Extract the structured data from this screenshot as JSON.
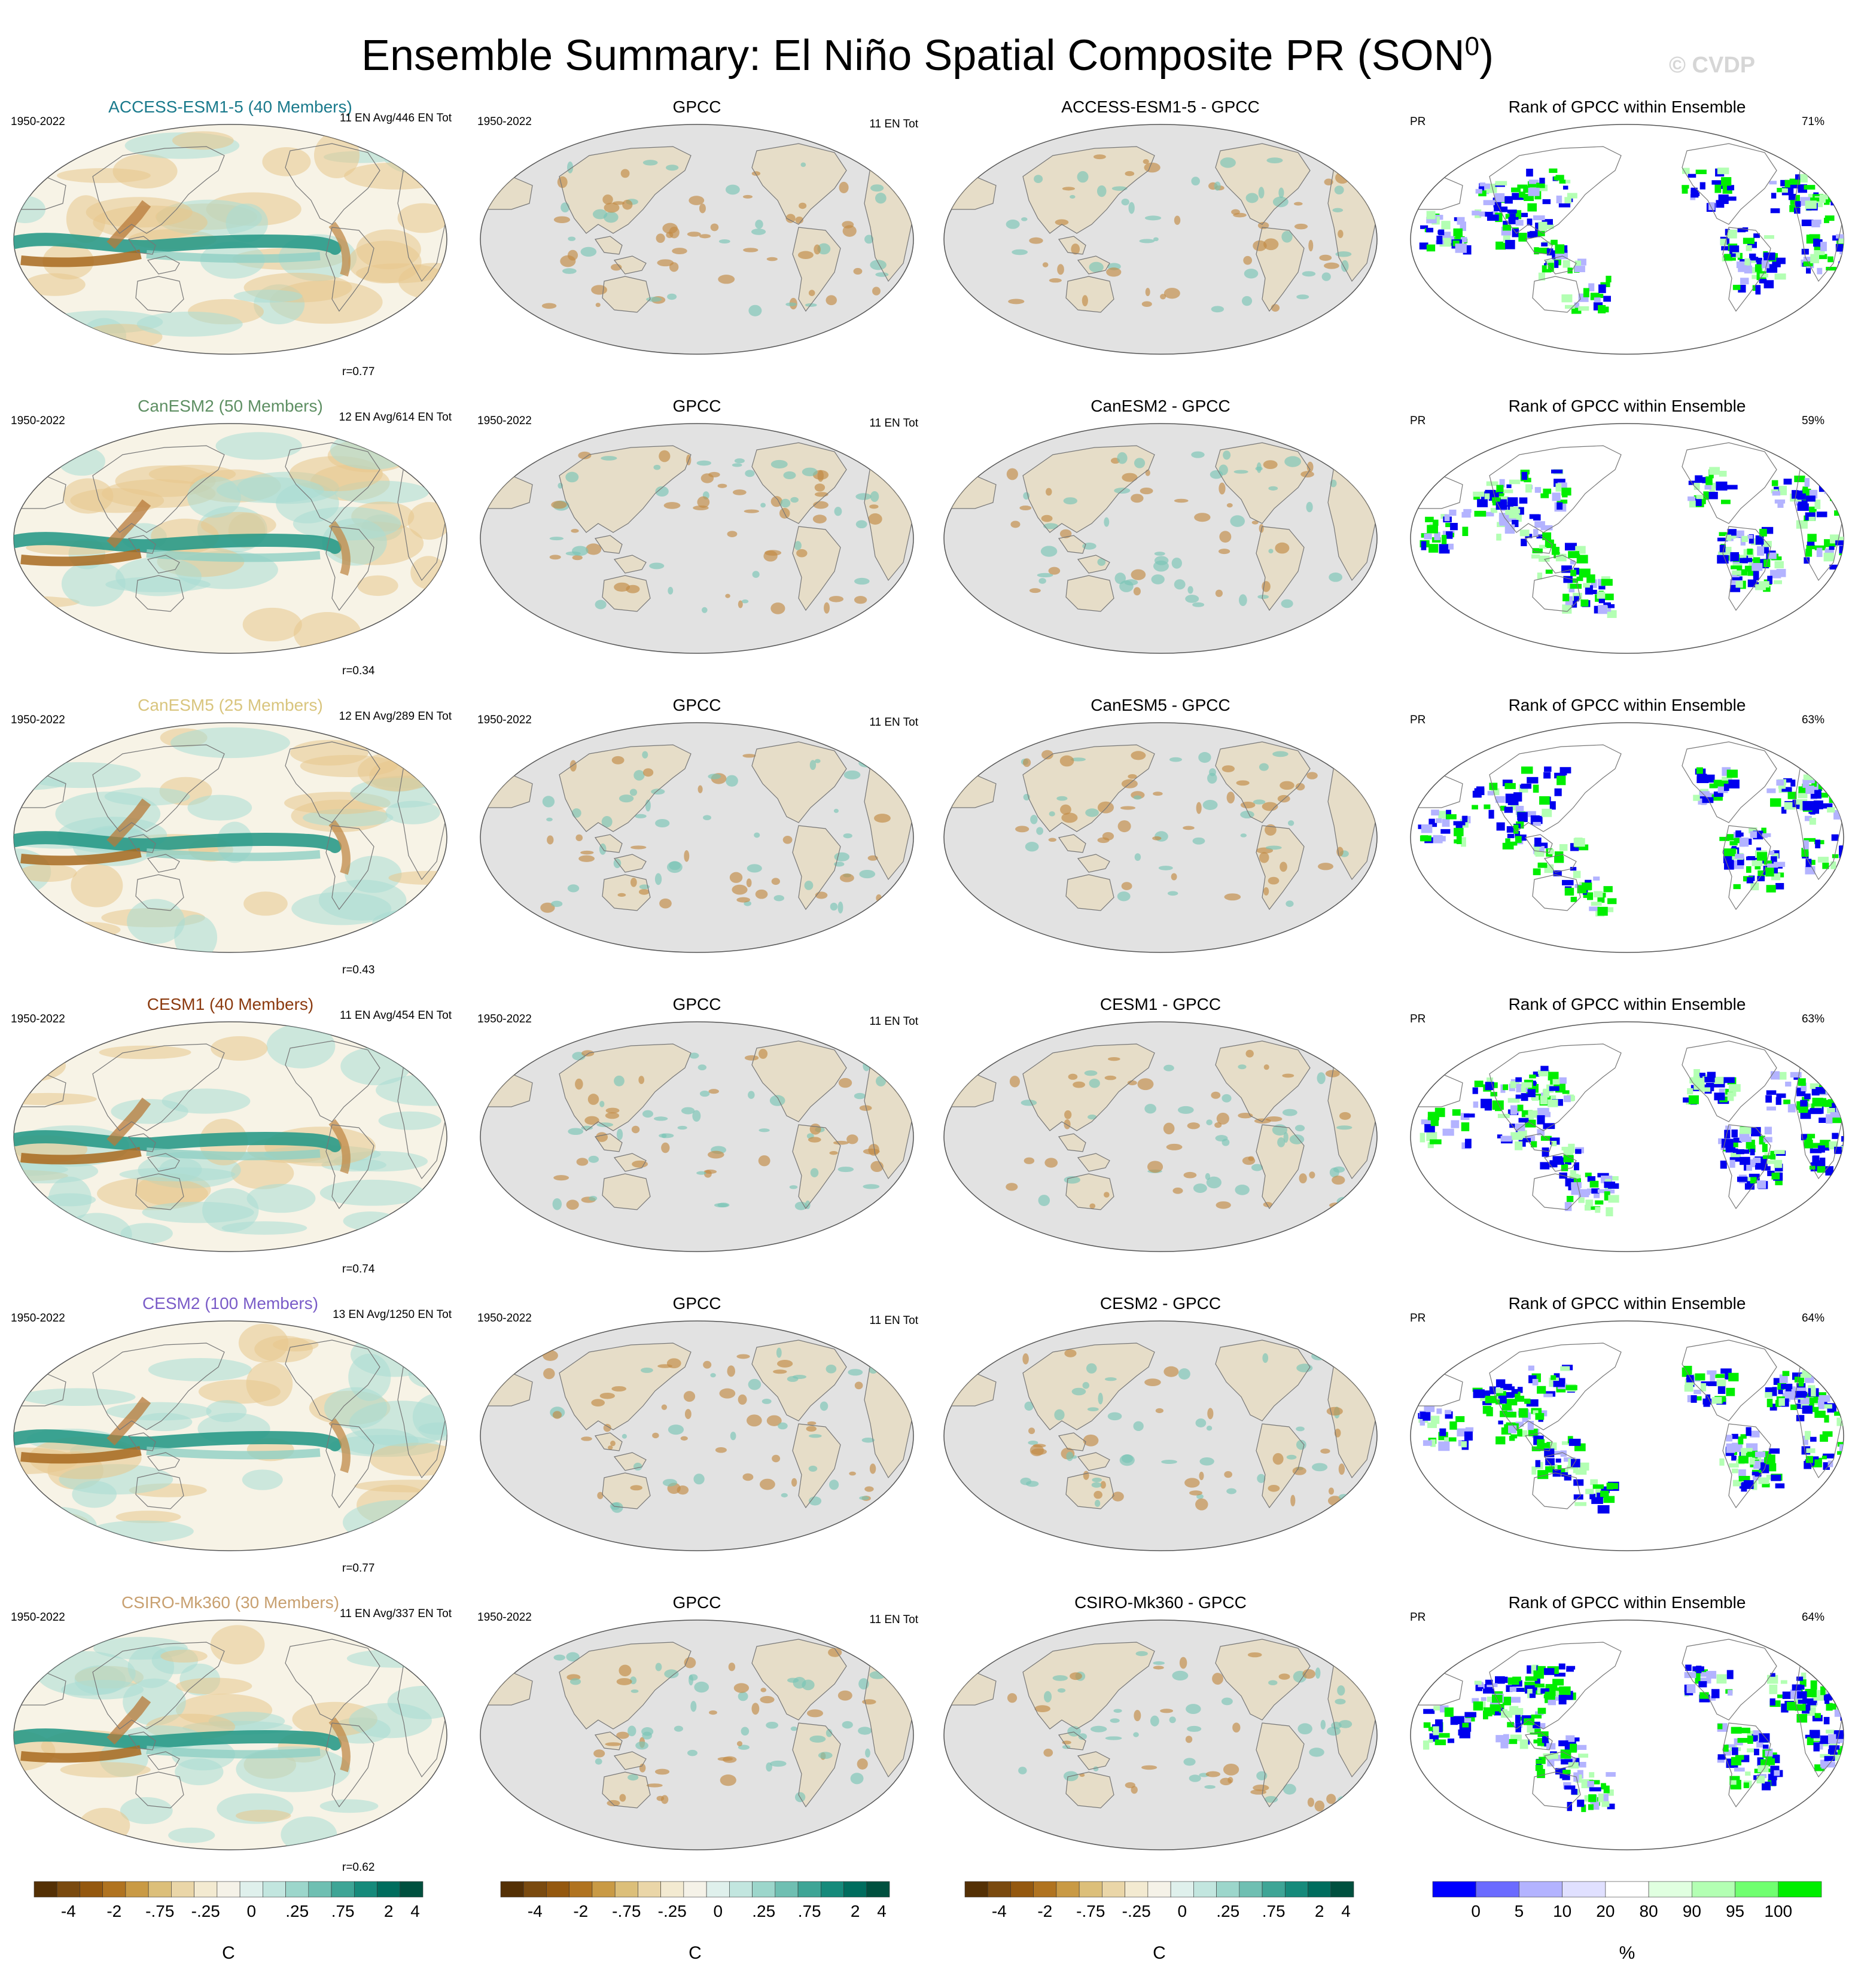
{
  "title": "Ensemble Summary: El Niño Spatial Composite PR (SON",
  "title_sup": "0",
  "title_close": ")",
  "watermark": "© CVDP",
  "rows": [
    {
      "model": "ACCESS-ESM1-5 (40 Members)",
      "model_color": "#1a7a8c",
      "period": "1950-2022",
      "counts": "11 EN Avg/446 EN Tot",
      "r": "r=0.77",
      "obs_title": "GPCC",
      "obs_period": "1950-2022",
      "obs_counts": "11 EN Tot",
      "diff_title": "ACCESS-ESM1-5 - GPCC",
      "rank_title": "Rank of GPCC within Ensemble",
      "rank_var": "PR",
      "rank_pct": "71%"
    },
    {
      "model": "CanESM2 (50 Members)",
      "model_color": "#5e8f63",
      "period": "1950-2022",
      "counts": "12 EN Avg/614 EN Tot",
      "r": "r=0.34",
      "obs_title": "GPCC",
      "obs_period": "1950-2022",
      "obs_counts": "11 EN Tot",
      "diff_title": "CanESM2 - GPCC",
      "rank_title": "Rank of GPCC within Ensemble",
      "rank_var": "PR",
      "rank_pct": "59%"
    },
    {
      "model": "CanESM5 (25 Members)",
      "model_color": "#d9c57e",
      "period": "1950-2022",
      "counts": "12 EN Avg/289 EN Tot",
      "r": "r=0.43",
      "obs_title": "GPCC",
      "obs_period": "1950-2022",
      "obs_counts": "11 EN Tot",
      "diff_title": "CanESM5 - GPCC",
      "rank_title": "Rank of GPCC within Ensemble",
      "rank_var": "PR",
      "rank_pct": "63%"
    },
    {
      "model": "CESM1 (40 Members)",
      "model_color": "#8b3a0f",
      "period": "1950-2022",
      "counts": "11 EN Avg/454 EN Tot",
      "r": "r=0.74",
      "obs_title": "GPCC",
      "obs_period": "1950-2022",
      "obs_counts": "11 EN Tot",
      "diff_title": "CESM1 - GPCC",
      "rank_title": "Rank of GPCC within Ensemble",
      "rank_var": "PR",
      "rank_pct": "63%"
    },
    {
      "model": "CESM2 (100 Members)",
      "model_color": "#7a5cc8",
      "period": "1950-2022",
      "counts": "13 EN Avg/1250 EN Tot",
      "r": "r=0.77",
      "obs_title": "GPCC",
      "obs_period": "1950-2022",
      "obs_counts": "11 EN Tot",
      "diff_title": "CESM2 - GPCC",
      "rank_title": "Rank of GPCC within Ensemble",
      "rank_var": "PR",
      "rank_pct": "64%"
    },
    {
      "model": "CSIRO-Mk360 (30 Members)",
      "model_color": "#c8a070",
      "period": "1950-2022",
      "counts": "11 EN Avg/337 EN Tot",
      "r": "r=0.62",
      "obs_title": "GPCC",
      "obs_period": "1950-2022",
      "obs_counts": "11 EN Tot",
      "diff_title": "CSIRO-Mk360 - GPCC",
      "rank_title": "Rank of GPCC within Ensemble",
      "rank_var": "PR",
      "rank_pct": "64%"
    }
  ],
  "colorbars": {
    "anomaly": {
      "ticks": [
        "-4",
        "-2",
        "-.75",
        "-.25",
        "0",
        ".25",
        ".75",
        "2",
        "4"
      ],
      "unit": "C",
      "colors": [
        "#543005",
        "#7a4a0f",
        "#94580f",
        "#b07320",
        "#c99a45",
        "#dcbf7a",
        "#ead6a8",
        "#f3ead1",
        "#f5f2e8",
        "#dff0ec",
        "#c2e6df",
        "#9cd6cb",
        "#6fbfb2",
        "#3ea596",
        "#168a7b",
        "#006d5e",
        "#00503f"
      ]
    },
    "rank": {
      "ticks": [
        "0",
        "5",
        "10",
        "20",
        "80",
        "90",
        "95",
        "100"
      ],
      "unit": "%",
      "colors": [
        "#0000ff",
        "#6b6bff",
        "#b3b3ff",
        "#e0e0ff",
        "#ffffff",
        "#e0ffe0",
        "#b3ffb3",
        "#70ff70",
        "#00ee00"
      ]
    }
  },
  "style": {
    "brown": "#a0661f",
    "teal": "#1b8a78",
    "land_grey": "#e2e2e2",
    "rank_blue": "#0000ee",
    "rank_green": "#00ee00"
  }
}
